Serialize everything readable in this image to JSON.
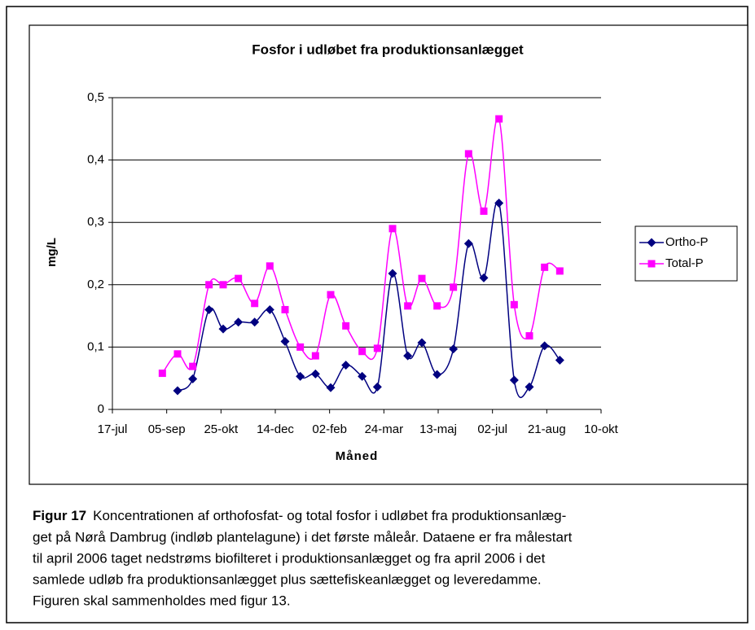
{
  "chart_data": {
    "type": "line",
    "title": "Fosfor i udløbet fra produktionsanlægget",
    "x_label": "Måned",
    "y_label": "mg/L",
    "xlim": [
      0,
      450
    ],
    "xticks": [
      {
        "value": 0,
        "label": "17-jul"
      },
      {
        "value": 50,
        "label": "05-sep"
      },
      {
        "value": 100,
        "label": "25-okt"
      },
      {
        "value": 150,
        "label": "14-dec"
      },
      {
        "value": 200,
        "label": "02-feb"
      },
      {
        "value": 250,
        "label": "24-mar"
      },
      {
        "value": 300,
        "label": "13-maj"
      },
      {
        "value": 350,
        "label": "02-jul"
      },
      {
        "value": 400,
        "label": "21-aug"
      },
      {
        "value": 450,
        "label": "10-okt"
      }
    ],
    "ylim": [
      0,
      0.5
    ],
    "yticks": [
      0,
      {
        "value": 0.1,
        "label": "0,1"
      },
      {
        "value": 0.2,
        "label": "0,2"
      },
      {
        "value": 0.3,
        "label": "0,3"
      },
      {
        "value": 0.4,
        "label": "0,4"
      },
      {
        "value": 0.5,
        "label": "0,5"
      }
    ],
    "grid": true,
    "legend": "right",
    "series": [
      {
        "name": "Ortho-P",
        "color": "#000080",
        "marker": "diamond",
        "x": [
          60,
          74,
          89,
          102,
          116,
          131,
          145,
          159,
          173,
          187,
          201,
          215,
          230,
          244,
          258,
          272,
          285,
          299,
          314,
          328,
          342,
          356,
          370,
          384,
          398,
          412
        ],
        "values": [
          0.03,
          0.049,
          0.16,
          0.129,
          0.14,
          0.14,
          0.16,
          0.109,
          0.053,
          0.057,
          0.035,
          0.071,
          0.053,
          0.036,
          0.218,
          0.086,
          0.107,
          0.056,
          0.097,
          0.266,
          0.211,
          0.331,
          0.047,
          0.036,
          0.102,
          0.079
        ]
      },
      {
        "name": "Total-P",
        "color": "#ff00ff",
        "marker": "square",
        "x": [
          46,
          60,
          74,
          89,
          102,
          116,
          131,
          145,
          159,
          173,
          187,
          201,
          215,
          230,
          244,
          258,
          272,
          285,
          299,
          314,
          328,
          342,
          356,
          370,
          384,
          398,
          412
        ],
        "values": [
          0.058,
          0.089,
          0.069,
          0.2,
          0.2,
          0.21,
          0.17,
          0.23,
          0.16,
          0.1,
          0.086,
          0.184,
          0.134,
          0.093,
          0.098,
          0.29,
          0.166,
          0.21,
          0.166,
          0.196,
          0.41,
          0.318,
          0.466,
          0.168,
          0.118,
          0.228,
          0.222
        ]
      }
    ]
  },
  "caption": {
    "label": "Figur 17",
    "lines": [
      "Koncentrationen af orthofosfat- og total fosfor i udløbet fra produktionsanlæg-",
      "get på Nørå Dambrug (indløb plantelagune) i det første måleår. Dataene er fra målestart",
      "til april 2006 taget nedstrøms biofilteret i produktionsanlægget og fra april 2006 i det",
      "samlede udløb fra produktionsanlægget plus sættefiskeanlægget og leveredamme.",
      "Figuren skal sammenholdes med figur 13."
    ]
  }
}
